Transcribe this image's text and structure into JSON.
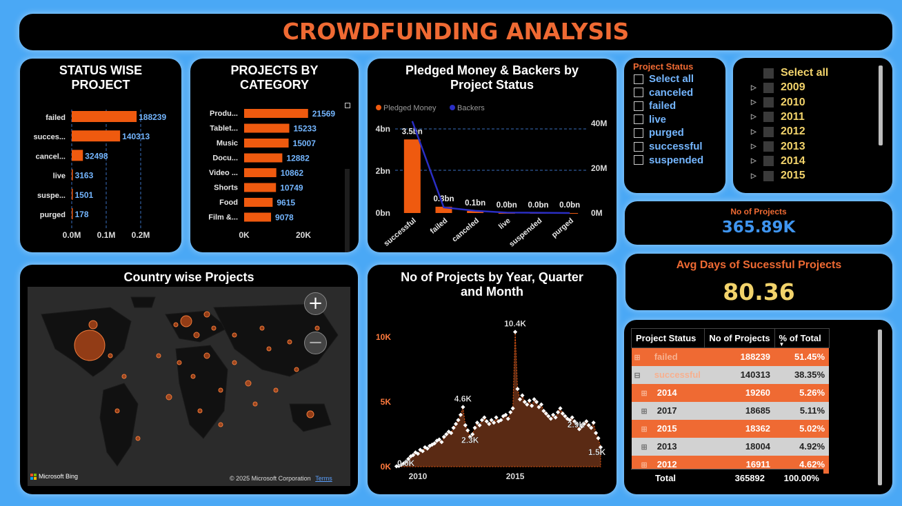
{
  "header": {
    "title": "CROWDFUNDING ANALYSIS"
  },
  "colors": {
    "accent": "#ef5a0f",
    "value_blue": "#74b6ff",
    "line_blue": "#2a2ec4",
    "gold": "#f2d36b",
    "background": "#4aa8f5"
  },
  "status_chart": {
    "title_line1": "STATUS WISE",
    "title_line2": "PROJECT",
    "chart_data": {
      "type": "bar",
      "orientation": "horizontal",
      "categories": [
        "failed",
        "succes...",
        "cancel...",
        "live",
        "suspe...",
        "purged"
      ],
      "values": [
        188239,
        140313,
        32498,
        3163,
        1501,
        178
      ],
      "xlim": [
        0,
        250000
      ],
      "xticks": [
        0,
        100000,
        200000
      ],
      "xtick_labels": [
        "0.0M",
        "0.1M",
        "0.2M"
      ]
    }
  },
  "category_chart": {
    "title_line1": "PROJECTS BY",
    "title_line2": "CATEGORY",
    "chart_data": {
      "type": "bar",
      "orientation": "horizontal",
      "categories": [
        "Produ...",
        "Tablet...",
        "Music",
        "Docu...",
        "Video ...",
        "Shorts",
        "Food",
        "Film &..."
      ],
      "values": [
        21569,
        15233,
        15007,
        12882,
        10862,
        10749,
        9615,
        9078
      ],
      "xlim": [
        0,
        27000
      ],
      "xticks": [
        0,
        20000
      ],
      "xtick_labels": [
        "0K",
        "20K"
      ]
    }
  },
  "pledged_chart": {
    "title_line1": "Pledged Money & Backers by",
    "title_line2": "Project Status",
    "chart_data": {
      "type": "bar",
      "categories": [
        "successful",
        "failed",
        "canceled",
        "live",
        "suspended",
        "purged"
      ],
      "series": [
        {
          "name": "Pledged Money",
          "type": "bar",
          "color": "#ef5a0f",
          "values": [
            3.5,
            0.3,
            0.1,
            0.0,
            0.0,
            0.0
          ],
          "labels": [
            "3.5bn",
            "0.3bn",
            "0.1bn",
            "0.0bn",
            "0.0bn",
            "0.0bn"
          ]
        },
        {
          "name": "Backers",
          "type": "line",
          "color": "#2a2ec4",
          "values": [
            41000000,
            2500000,
            1000000,
            200000,
            100000,
            10000
          ]
        }
      ],
      "y_left_ticks": [
        "0bn",
        "2bn",
        "4bn"
      ],
      "y_left_lim": [
        0,
        4.5
      ],
      "y_right_ticks": [
        "0M",
        "20M",
        "40M"
      ],
      "y_right_lim": [
        0,
        42000000
      ]
    }
  },
  "status_slicer": {
    "title": "Project Status",
    "items": [
      "Select all",
      "canceled",
      "failed",
      "live",
      "purged",
      "successful",
      "suspended"
    ]
  },
  "year_slicer": {
    "items": [
      "Select all",
      "2009",
      "2010",
      "2011",
      "2012",
      "2013",
      "2014",
      "2015"
    ]
  },
  "kpi_projects": {
    "label": "No of Projects",
    "value": "365.89K"
  },
  "kpi_days": {
    "label": "Avg Days of Sucessful Projects",
    "value": "80.36"
  },
  "map": {
    "title": "Country wise Projects",
    "zoom_in": "+",
    "zoom_out": "−",
    "brand": "Microsoft Bing",
    "copyright": "© 2025 Microsoft Corporation",
    "terms": "Terms"
  },
  "year_chart": {
    "title_line1": "No of Projects by Year, Quarter",
    "title_line2": "and Month",
    "chart_data": {
      "type": "area",
      "ylim": [
        0,
        11000
      ],
      "yticks": [
        0,
        5000,
        10000
      ],
      "ytick_labels": [
        "0K",
        "5K",
        "10K"
      ],
      "xtick_labels": [
        "2010",
        "2015"
      ],
      "x_start": "2009-04",
      "values": [
        30,
        60,
        150,
        250,
        400,
        600,
        800,
        900,
        1100,
        1000,
        1300,
        1200,
        1500,
        1400,
        1600,
        1700,
        1800,
        2000,
        2100,
        1900,
        2300,
        2500,
        2700,
        2600,
        3000,
        3300,
        3600,
        4000,
        4600,
        3200,
        2800,
        2300,
        2500,
        3000,
        3400,
        3200,
        3600,
        3800,
        3500,
        3300,
        3600,
        3400,
        3800,
        3500,
        3600,
        3900,
        4000,
        3700,
        4200,
        4500,
        10400,
        6000,
        5200,
        5500,
        5000,
        4800,
        5100,
        4700,
        5200,
        5000,
        4600,
        4800,
        4300,
        4100,
        3900,
        3700,
        4000,
        3800,
        4200,
        4500,
        4100,
        3900,
        3700,
        3600,
        3800,
        3500,
        3300,
        2900,
        3100,
        3300,
        3500,
        3200,
        3000,
        3400,
        2600,
        2200,
        1500
      ],
      "annotations": [
        {
          "label": "10.4K",
          "value": 10400
        },
        {
          "label": "4.6K",
          "value": 4600
        },
        {
          "label": "2.3K",
          "value": 2300
        },
        {
          "label": "2.9K",
          "value": 2900
        },
        {
          "label": "1.5K",
          "value": 1500
        },
        {
          "label": "0.0K",
          "value": 30
        }
      ]
    }
  },
  "matrix": {
    "headers": [
      "Project Status",
      "No of Projects",
      "% of Total"
    ],
    "rows": [
      {
        "label": "failed",
        "count": "188239",
        "pct": "51.45%",
        "expand": "⊞",
        "style": "o",
        "level": 0
      },
      {
        "label": "successful",
        "count": "140313",
        "pct": "38.35%",
        "expand": "⊟",
        "style": "g",
        "level": 0
      },
      {
        "label": "2014",
        "count": "19260",
        "pct": "5.26%",
        "expand": "⊞",
        "style": "o",
        "level": 1
      },
      {
        "label": "2017",
        "count": "18685",
        "pct": "5.11%",
        "expand": "⊞",
        "style": "g",
        "level": 1
      },
      {
        "label": "2015",
        "count": "18362",
        "pct": "5.02%",
        "expand": "⊞",
        "style": "o",
        "level": 1
      },
      {
        "label": "2013",
        "count": "18004",
        "pct": "4.92%",
        "expand": "⊞",
        "style": "g",
        "level": 1
      },
      {
        "label": "2012",
        "count": "16911",
        "pct": "4.62%",
        "expand": "⊞",
        "style": "o",
        "level": 1
      }
    ],
    "total": {
      "label": "Total",
      "count": "365892",
      "pct": "100.00%"
    }
  }
}
